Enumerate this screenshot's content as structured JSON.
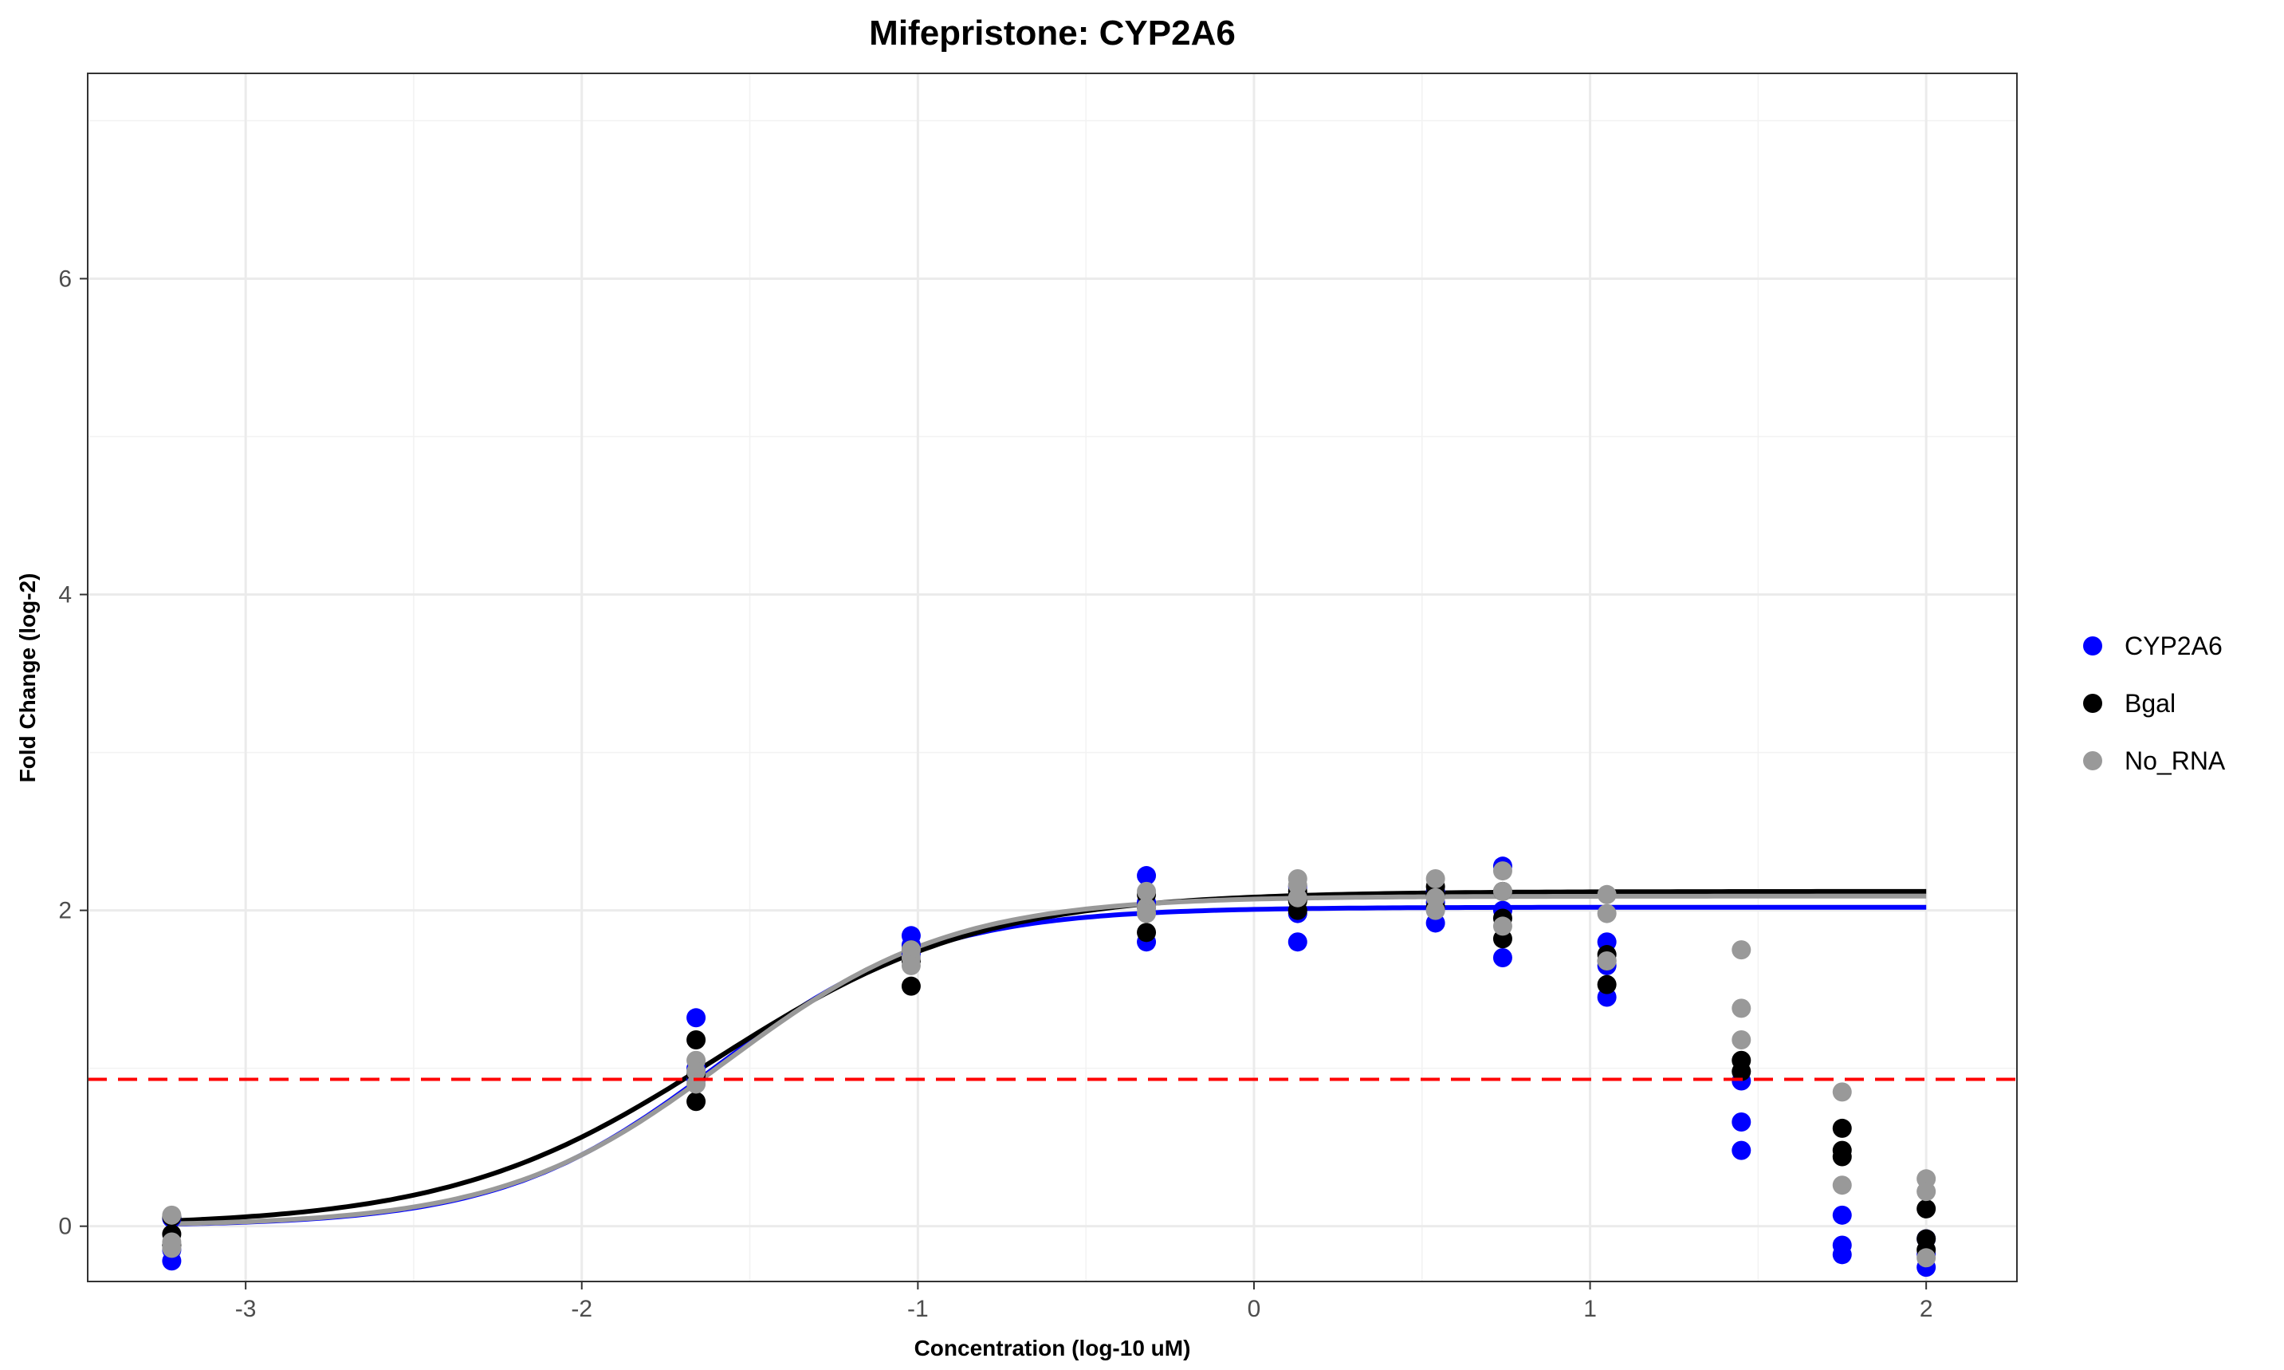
{
  "chart_data": {
    "type": "scatter",
    "title": "Mifepristone: CYP2A6",
    "xlabel": "Concentration (log-10 uM)",
    "ylabel": "Fold Change (log-2)",
    "xlim": [
      -3.47,
      2.27
    ],
    "ylim": [
      -0.35,
      7.3
    ],
    "x_ticks": [
      -3,
      -2,
      -1,
      0,
      1,
      2
    ],
    "x_tick_labels": [
      "-3",
      "-2",
      "-1",
      "0",
      "1",
      "2"
    ],
    "y_ticks": [
      0,
      2,
      4,
      6
    ],
    "y_tick_labels": [
      "0",
      "2",
      "4",
      "6"
    ],
    "grid": true,
    "legend_position": "right",
    "threshold_line": {
      "y": 0.93,
      "color": "#ff0000",
      "style": "dashed"
    },
    "series": [
      {
        "name": "CYP2A6",
        "color": "#0000ff",
        "points": [
          [
            -3.22,
            -0.22
          ],
          [
            -3.22,
            -0.15
          ],
          [
            -3.22,
            0.05
          ],
          [
            -1.66,
            1.32
          ],
          [
            -1.66,
            1.0
          ],
          [
            -1.66,
            0.93
          ],
          [
            -1.02,
            1.84
          ],
          [
            -1.02,
            1.78
          ],
          [
            -1.02,
            1.72
          ],
          [
            -0.32,
            2.22
          ],
          [
            -0.32,
            2.05
          ],
          [
            -0.32,
            1.8
          ],
          [
            0.13,
            2.15
          ],
          [
            0.13,
            1.98
          ],
          [
            0.13,
            1.8
          ],
          [
            0.54,
            2.12
          ],
          [
            0.54,
            2.05
          ],
          [
            0.54,
            1.92
          ],
          [
            0.74,
            2.28
          ],
          [
            0.74,
            2.0
          ],
          [
            0.74,
            1.7
          ],
          [
            1.05,
            1.8
          ],
          [
            1.05,
            1.65
          ],
          [
            1.05,
            1.45
          ],
          [
            1.45,
            0.92
          ],
          [
            1.45,
            0.66
          ],
          [
            1.45,
            0.48
          ],
          [
            1.75,
            0.07
          ],
          [
            1.75,
            -0.12
          ],
          [
            1.75,
            -0.18
          ],
          [
            2.0,
            -0.18
          ],
          [
            2.0,
            -0.26
          ],
          [
            2.0,
            -0.08
          ]
        ],
        "fit": {
          "bottom": 0.0,
          "top": 2.02,
          "ec50": -1.6,
          "hill": 1.35
        }
      },
      {
        "name": "Bgal",
        "color": "#000000",
        "points": [
          [
            -3.22,
            0.06
          ],
          [
            -3.22,
            -0.05
          ],
          [
            -3.22,
            -0.12
          ],
          [
            -1.66,
            1.18
          ],
          [
            -1.66,
            0.96
          ],
          [
            -1.66,
            0.79
          ],
          [
            -1.02,
            1.75
          ],
          [
            -1.02,
            1.68
          ],
          [
            -1.02,
            1.52
          ],
          [
            -0.32,
            2.1
          ],
          [
            -0.32,
            2.02
          ],
          [
            -0.32,
            1.86
          ],
          [
            0.13,
            2.12
          ],
          [
            0.13,
            2.06
          ],
          [
            0.13,
            2.0
          ],
          [
            0.54,
            2.15
          ],
          [
            0.54,
            2.1
          ],
          [
            0.54,
            2.02
          ],
          [
            0.74,
            2.12
          ],
          [
            0.74,
            1.95
          ],
          [
            0.74,
            1.82
          ],
          [
            1.05,
            1.72
          ],
          [
            1.05,
            1.68
          ],
          [
            1.05,
            1.53
          ],
          [
            1.45,
            1.05
          ],
          [
            1.45,
            0.98
          ],
          [
            1.75,
            0.62
          ],
          [
            1.75,
            0.48
          ],
          [
            1.75,
            0.44
          ],
          [
            2.0,
            0.11
          ],
          [
            2.0,
            -0.08
          ],
          [
            2.0,
            -0.15
          ]
        ],
        "fit": {
          "bottom": 0.0,
          "top": 2.12,
          "ec50": -1.6,
          "hill": 1.1
        }
      },
      {
        "name": "No_RNA",
        "color": "#999999",
        "points": [
          [
            -3.22,
            0.07
          ],
          [
            -3.22,
            -0.1
          ],
          [
            -3.22,
            -0.14
          ],
          [
            -1.66,
            1.05
          ],
          [
            -1.66,
            0.98
          ],
          [
            -1.66,
            0.9
          ],
          [
            -1.02,
            1.75
          ],
          [
            -1.02,
            1.7
          ],
          [
            -1.02,
            1.65
          ],
          [
            -0.32,
            2.12
          ],
          [
            -0.32,
            2.02
          ],
          [
            -0.32,
            1.98
          ],
          [
            0.13,
            2.2
          ],
          [
            0.13,
            2.16
          ],
          [
            0.13,
            2.08
          ],
          [
            0.54,
            2.2
          ],
          [
            0.54,
            2.08
          ],
          [
            0.54,
            2.0
          ],
          [
            0.74,
            2.25
          ],
          [
            0.74,
            2.12
          ],
          [
            0.74,
            1.9
          ],
          [
            1.05,
            2.1
          ],
          [
            1.05,
            1.98
          ],
          [
            1.05,
            1.68
          ],
          [
            1.45,
            1.75
          ],
          [
            1.45,
            1.38
          ],
          [
            1.45,
            1.18
          ],
          [
            1.75,
            0.85
          ],
          [
            1.75,
            0.26
          ],
          [
            2.0,
            0.3
          ],
          [
            2.0,
            0.22
          ],
          [
            2.0,
            -0.2
          ]
        ],
        "fit": {
          "bottom": 0.0,
          "top": 2.09,
          "ec50": -1.57,
          "hill": 1.3
        }
      }
    ]
  }
}
